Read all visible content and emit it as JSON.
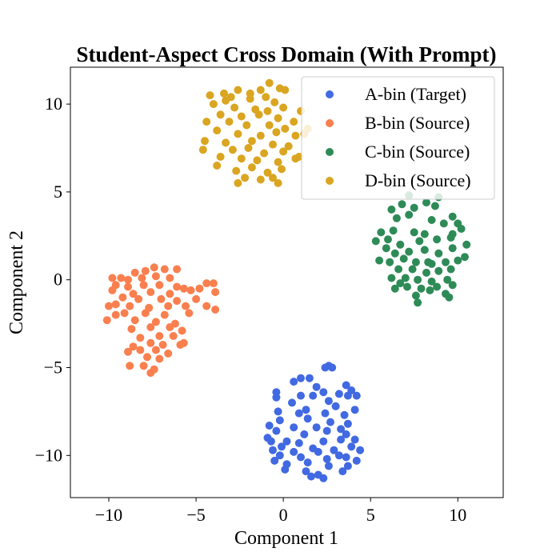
{
  "chart_data": {
    "type": "scatter",
    "title": "Student-Aspect Cross Domain (With Prompt)",
    "xlabel": "Component 1",
    "ylabel": "Component 2",
    "xlim": [
      -12.2,
      12.6
    ],
    "ylim": [
      -12.4,
      12.1
    ],
    "xticks": [
      -10,
      -5,
      0,
      5,
      10
    ],
    "yticks": [
      -10,
      -5,
      0,
      5,
      10
    ],
    "xtick_labels": [
      "−10",
      "−5",
      "0",
      "5",
      "10"
    ],
    "ytick_labels": [
      "−10",
      "−5",
      "0",
      "5",
      "10"
    ],
    "grid": false,
    "legend_position": "top-right",
    "series": [
      {
        "name": "A-bin (Target)",
        "color": "#4169e1",
        "points": [
          [
            2.6,
            -4.9
          ],
          [
            2.4,
            -5.0
          ],
          [
            2.8,
            -5.0
          ],
          [
            1.5,
            -5.6
          ],
          [
            1.0,
            -5.6
          ],
          [
            0.6,
            -5.8
          ],
          [
            1.9,
            -6.1
          ],
          [
            3.6,
            -6.0
          ],
          [
            3.2,
            -6.5
          ],
          [
            -0.4,
            -6.4
          ],
          [
            2.3,
            -6.4
          ],
          [
            3.7,
            -6.6
          ],
          [
            3.9,
            -6.3
          ],
          [
            4.2,
            -6.6
          ],
          [
            -0.4,
            -6.7
          ],
          [
            1.0,
            -6.6
          ],
          [
            1.7,
            -6.6
          ],
          [
            2.6,
            -6.9
          ],
          [
            0.5,
            -7.0
          ],
          [
            1.3,
            -7.4
          ],
          [
            3.0,
            -7.2
          ],
          [
            4.1,
            -7.4
          ],
          [
            -0.3,
            -7.5
          ],
          [
            0.9,
            -7.6
          ],
          [
            2.4,
            -7.6
          ],
          [
            3.5,
            -7.7
          ],
          [
            -0.2,
            -8.0
          ],
          [
            1.4,
            -7.9
          ],
          [
            2.7,
            -8.1
          ],
          [
            3.7,
            -8.2
          ],
          [
            -0.8,
            -8.3
          ],
          [
            0.6,
            -8.4
          ],
          [
            1.9,
            -8.4
          ],
          [
            3.3,
            -8.5
          ],
          [
            -0.4,
            -8.6
          ],
          [
            1.2,
            -8.8
          ],
          [
            2.5,
            -8.6
          ],
          [
            3.6,
            -8.8
          ],
          [
            -0.9,
            -9.0
          ],
          [
            0.2,
            -9.2
          ],
          [
            0.9,
            -9.3
          ],
          [
            2.3,
            -9.2
          ],
          [
            3.3,
            -9.1
          ],
          [
            -0.1,
            -9.5
          ],
          [
            1.7,
            -9.6
          ],
          [
            2.9,
            -9.7
          ],
          [
            3.9,
            -9.5
          ],
          [
            -0.6,
            -9.7
          ],
          [
            0.6,
            -9.8
          ],
          [
            2.0,
            -9.8
          ],
          [
            3.2,
            -10.0
          ],
          [
            -0.2,
            -10.0
          ],
          [
            1.0,
            -10.1
          ],
          [
            2.5,
            -10.2
          ],
          [
            3.6,
            -10.1
          ],
          [
            -0.5,
            -10.3
          ],
          [
            1.4,
            -10.4
          ],
          [
            2.6,
            -10.6
          ],
          [
            4.2,
            -10.3
          ],
          [
            0.1,
            -10.8
          ],
          [
            1.3,
            -10.9
          ],
          [
            2.0,
            -11.1
          ],
          [
            3.4,
            -10.9
          ],
          [
            1.6,
            -11.2
          ],
          [
            2.3,
            -11.3
          ],
          [
            3.7,
            -10.6
          ],
          [
            4.4,
            -9.7
          ],
          [
            0.2,
            -10.5
          ],
          [
            -0.7,
            -9.2
          ],
          [
            4.1,
            -9.1
          ]
        ]
      },
      {
        "name": "B-bin (Source)",
        "color": "#fa7f4f",
        "points": [
          [
            -7.4,
            0.7
          ],
          [
            -6.8,
            0.6
          ],
          [
            -6.1,
            0.6
          ],
          [
            -7.9,
            0.5
          ],
          [
            -8.5,
            0.4
          ],
          [
            -9.8,
            0.1
          ],
          [
            -9.3,
            0.1
          ],
          [
            -8.9,
            0.0
          ],
          [
            -8.1,
            0.1
          ],
          [
            -7.3,
            0.2
          ],
          [
            -6.5,
            0.1
          ],
          [
            -9.6,
            -0.3
          ],
          [
            -8.9,
            -0.4
          ],
          [
            -8.0,
            -0.3
          ],
          [
            -7.1,
            -0.3
          ],
          [
            -6.1,
            -0.4
          ],
          [
            -5.7,
            -0.5
          ],
          [
            -4.4,
            -0.2
          ],
          [
            -4.0,
            -0.2
          ],
          [
            -9.8,
            -0.6
          ],
          [
            -8.6,
            -0.8
          ],
          [
            -7.6,
            -0.7
          ],
          [
            -6.5,
            -0.8
          ],
          [
            -5.3,
            -0.6
          ],
          [
            -4.8,
            -0.5
          ],
          [
            -3.9,
            -0.7
          ],
          [
            -9.2,
            -1.0
          ],
          [
            -8.3,
            -1.1
          ],
          [
            -7.0,
            -1.1
          ],
          [
            -6.1,
            -1.2
          ],
          [
            -5.0,
            -1.1
          ],
          [
            -9.6,
            -1.4
          ],
          [
            -8.8,
            -1.5
          ],
          [
            -7.7,
            -1.6
          ],
          [
            -6.6,
            -1.5
          ],
          [
            -5.6,
            -1.5
          ],
          [
            -4.4,
            -1.5
          ],
          [
            -3.9,
            -1.7
          ],
          [
            -10.0,
            -1.5
          ],
          [
            -9.1,
            -1.9
          ],
          [
            -7.9,
            -1.9
          ],
          [
            -6.8,
            -2.0
          ],
          [
            -5.4,
            -1.9
          ],
          [
            -10.1,
            -2.3
          ],
          [
            -8.5,
            -2.3
          ],
          [
            -7.3,
            -2.4
          ],
          [
            -6.2,
            -2.5
          ],
          [
            -9.6,
            -2.0
          ],
          [
            -8.7,
            -2.8
          ],
          [
            -7.6,
            -2.7
          ],
          [
            -6.5,
            -2.7
          ],
          [
            -5.8,
            -2.9
          ],
          [
            -8.2,
            -3.3
          ],
          [
            -7.1,
            -3.2
          ],
          [
            -6.3,
            -3.2
          ],
          [
            -5.7,
            -3.6
          ],
          [
            -8.6,
            -3.8
          ],
          [
            -7.6,
            -3.6
          ],
          [
            -6.9,
            -3.7
          ],
          [
            -5.9,
            -3.7
          ],
          [
            -8.2,
            -4.0
          ],
          [
            -7.3,
            -4.0
          ],
          [
            -6.6,
            -4.2
          ],
          [
            -8.9,
            -4.1
          ],
          [
            -7.8,
            -4.4
          ],
          [
            -7.1,
            -4.5
          ],
          [
            -8.8,
            -4.9
          ],
          [
            -8.0,
            -4.9
          ],
          [
            -7.4,
            -5.1
          ],
          [
            -7.6,
            -5.3
          ]
        ]
      },
      {
        "name": "C-bin (Source)",
        "color": "#2e8b57",
        "points": [
          [
            7.2,
            4.8
          ],
          [
            8.9,
            4.7
          ],
          [
            8.2,
            4.4
          ],
          [
            8.7,
            4.2
          ],
          [
            6.8,
            4.3
          ],
          [
            7.5,
            4.1
          ],
          [
            6.2,
            4.0
          ],
          [
            9.7,
            3.6
          ],
          [
            7.2,
            3.7
          ],
          [
            6.5,
            3.5
          ],
          [
            8.5,
            3.4
          ],
          [
            9.2,
            3.2
          ],
          [
            10.0,
            3.2
          ],
          [
            10.2,
            2.9
          ],
          [
            5.6,
            2.7
          ],
          [
            6.3,
            2.8
          ],
          [
            7.5,
            2.7
          ],
          [
            8.1,
            2.6
          ],
          [
            9.7,
            2.6
          ],
          [
            5.3,
            2.2
          ],
          [
            6.0,
            2.3
          ],
          [
            6.7,
            2.0
          ],
          [
            7.8,
            2.2
          ],
          [
            8.8,
            2.3
          ],
          [
            9.6,
            2.4
          ],
          [
            5.9,
            1.8
          ],
          [
            6.4,
            1.5
          ],
          [
            7.2,
            1.6
          ],
          [
            8.1,
            1.7
          ],
          [
            8.9,
            1.5
          ],
          [
            9.7,
            1.8
          ],
          [
            10.5,
            2.0
          ],
          [
            5.5,
            1.1
          ],
          [
            6.1,
            1.0
          ],
          [
            6.9,
            1.2
          ],
          [
            7.6,
            1.0
          ],
          [
            8.5,
            0.9
          ],
          [
            9.3,
            1.0
          ],
          [
            10.0,
            1.1
          ],
          [
            10.4,
            1.3
          ],
          [
            6.6,
            0.6
          ],
          [
            7.4,
            0.6
          ],
          [
            8.2,
            0.4
          ],
          [
            8.9,
            0.5
          ],
          [
            9.6,
            0.6
          ],
          [
            6.2,
            0.1
          ],
          [
            7.0,
            0.1
          ],
          [
            7.7,
            0.0
          ],
          [
            8.5,
            -0.1
          ],
          [
            9.4,
            0.0
          ],
          [
            6.4,
            -0.5
          ],
          [
            7.1,
            -0.4
          ],
          [
            7.9,
            -0.5
          ],
          [
            8.8,
            -0.4
          ],
          [
            9.7,
            -0.3
          ],
          [
            7.6,
            -0.9
          ],
          [
            8.4,
            -0.6
          ],
          [
            9.3,
            -0.8
          ],
          [
            7.7,
            -1.3
          ],
          [
            9.5,
            -1.0
          ],
          [
            6.7,
            -0.2
          ],
          [
            8.3,
            1.0
          ]
        ]
      },
      {
        "name": "D-bin (Source)",
        "color": "#daa520",
        "points": [
          [
            -0.8,
            11.2
          ],
          [
            -1.3,
            10.8
          ],
          [
            -2.6,
            10.8
          ],
          [
            -3.4,
            10.6
          ],
          [
            -0.2,
            10.9
          ],
          [
            0.1,
            10.8
          ],
          [
            -4.2,
            10.5
          ],
          [
            -3.0,
            10.4
          ],
          [
            -1.9,
            10.3
          ],
          [
            -1.0,
            10.4
          ],
          [
            -0.5,
            10.1
          ],
          [
            -4.0,
            10.0
          ],
          [
            -3.3,
            10.2
          ],
          [
            -2.8,
            9.8
          ],
          [
            -1.6,
            9.7
          ],
          [
            -0.9,
            9.6
          ],
          [
            0.0,
            9.8
          ],
          [
            -3.6,
            9.4
          ],
          [
            -2.4,
            9.3
          ],
          [
            -1.4,
            9.4
          ],
          [
            -0.3,
            9.2
          ],
          [
            0.6,
            9.0
          ],
          [
            -4.4,
            9.0
          ],
          [
            -3.1,
            9.0
          ],
          [
            -2.1,
            8.8
          ],
          [
            -0.8,
            8.8
          ],
          [
            0.1,
            8.6
          ],
          [
            1.2,
            8.3
          ],
          [
            1.4,
            8.6
          ],
          [
            -3.8,
            8.5
          ],
          [
            -2.6,
            8.3
          ],
          [
            -1.3,
            8.2
          ],
          [
            -0.4,
            8.4
          ],
          [
            0.7,
            8.2
          ],
          [
            -4.5,
            7.9
          ],
          [
            -3.3,
            7.8
          ],
          [
            -1.8,
            7.9
          ],
          [
            -0.6,
            7.7
          ],
          [
            0.3,
            7.6
          ],
          [
            -4.6,
            7.4
          ],
          [
            -2.9,
            7.4
          ],
          [
            -2.0,
            7.5
          ],
          [
            -1.1,
            7.2
          ],
          [
            0.0,
            7.3
          ],
          [
            -3.6,
            7.0
          ],
          [
            -2.4,
            6.9
          ],
          [
            -1.5,
            6.8
          ],
          [
            -0.3,
            6.7
          ],
          [
            0.7,
            6.9
          ],
          [
            -3.8,
            6.5
          ],
          [
            -2.7,
            6.2
          ],
          [
            -1.8,
            6.4
          ],
          [
            -0.9,
            6.1
          ],
          [
            -0.1,
            6.3
          ],
          [
            -2.2,
            5.8
          ],
          [
            -1.3,
            5.7
          ],
          [
            -0.6,
            5.8
          ],
          [
            -2.6,
            5.5
          ],
          [
            -0.3,
            5.5
          ],
          [
            1.0,
            9.6
          ],
          [
            0.9,
            7.0
          ],
          [
            -1.9,
            10.6
          ]
        ]
      }
    ]
  }
}
